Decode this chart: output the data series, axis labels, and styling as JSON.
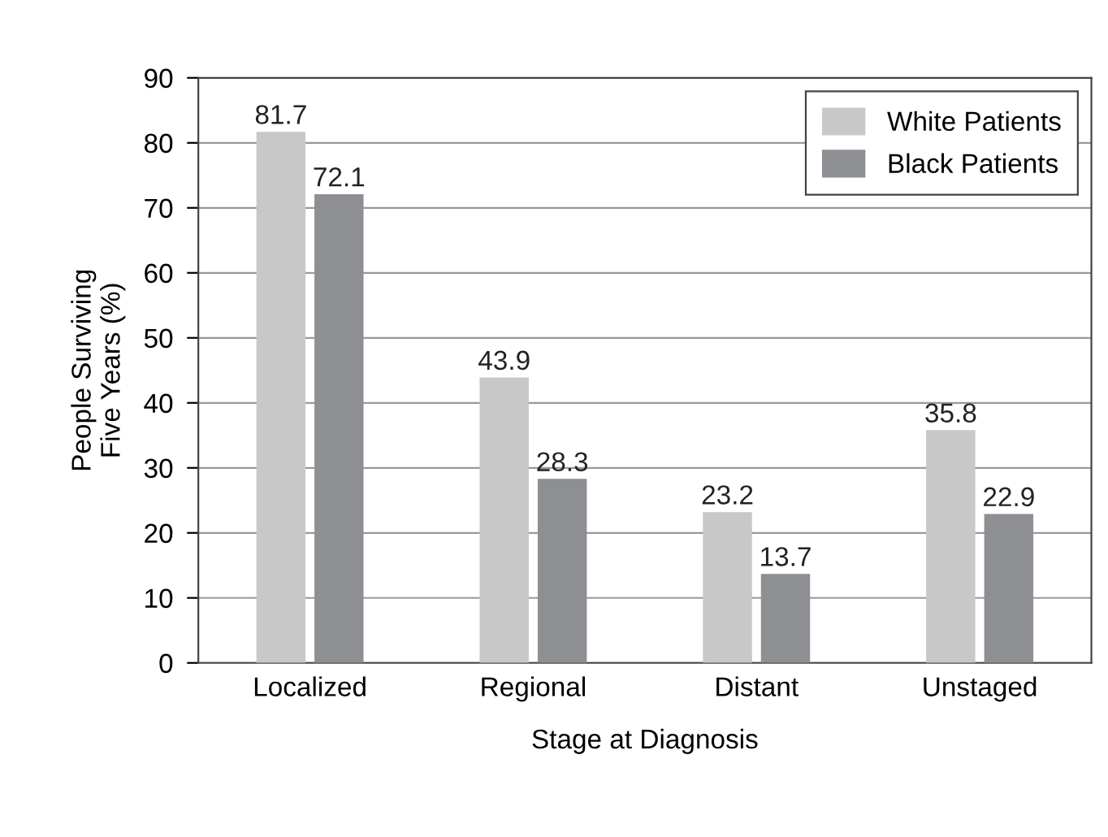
{
  "chart_data": {
    "type": "bar",
    "xlabel": "Stage at Diagnosis",
    "ylabel": "People Surviving\nFive Years (%)",
    "categories": [
      "Localized",
      "Regional",
      "Distant",
      "Unstaged"
    ],
    "series": [
      {
        "name": "White Patients",
        "color": "#c8c8c8",
        "values": [
          81.7,
          43.9,
          23.2,
          35.8
        ]
      },
      {
        "name": "Black Patients",
        "color": "#8e8f92",
        "values": [
          72.1,
          28.3,
          13.7,
          22.9
        ]
      }
    ],
    "ylim": [
      0,
      90
    ],
    "yticks": [
      0,
      10,
      20,
      30,
      40,
      50,
      60,
      70,
      80,
      90
    ],
    "grid": "y",
    "legend": "top right",
    "data_labels": true
  }
}
